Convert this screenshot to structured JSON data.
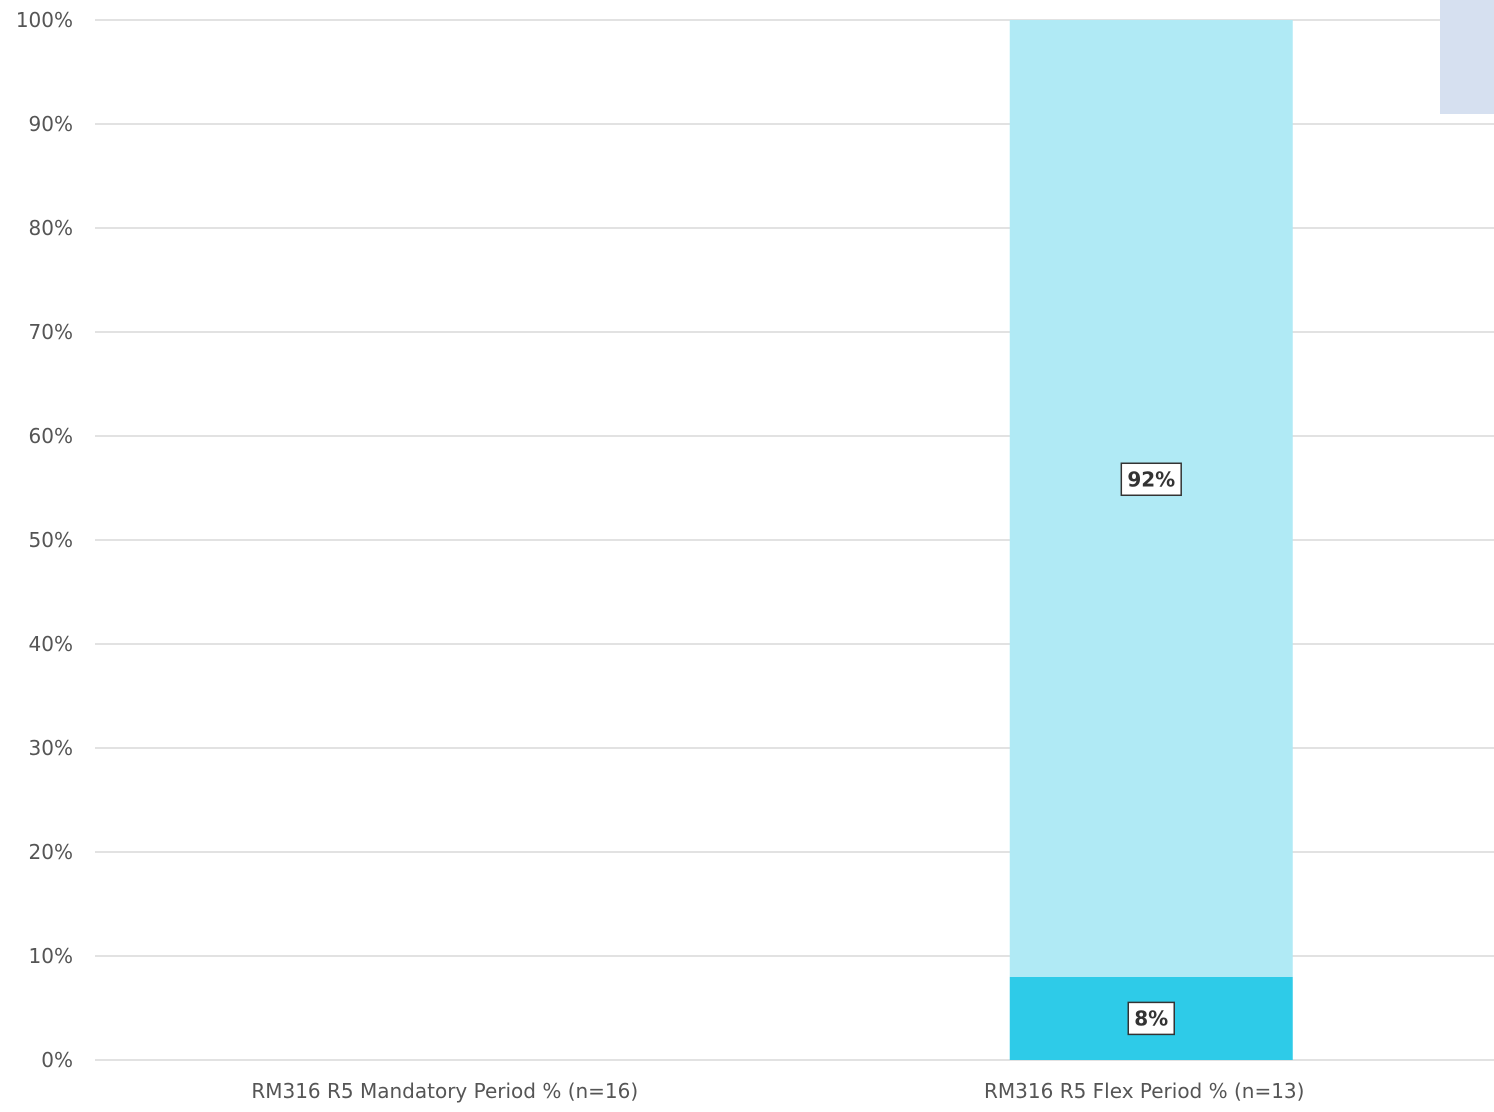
{
  "chart_data": {
    "type": "bar",
    "stacked": true,
    "categories": [
      "RM316 R5 Mandatory Period % (n=16)",
      "RM316 R5 Flex Period % (n=13)"
    ],
    "series": [
      {
        "values": [
          0,
          8
        ],
        "color": "#2ecbe8",
        "labels": [
          "",
          "8%"
        ]
      },
      {
        "values": [
          0,
          92
        ],
        "color": "#b0eaf5",
        "labels": [
          "",
          "92%"
        ]
      }
    ],
    "ylim": [
      0,
      100
    ],
    "yticks": [
      "0%",
      "10%",
      "20%",
      "30%",
      "40%",
      "50%",
      "60%",
      "70%",
      "80%",
      "90%",
      "100%"
    ],
    "grid": true,
    "legend": "top-right",
    "legend_swatch_color": "#d6e0f0"
  }
}
